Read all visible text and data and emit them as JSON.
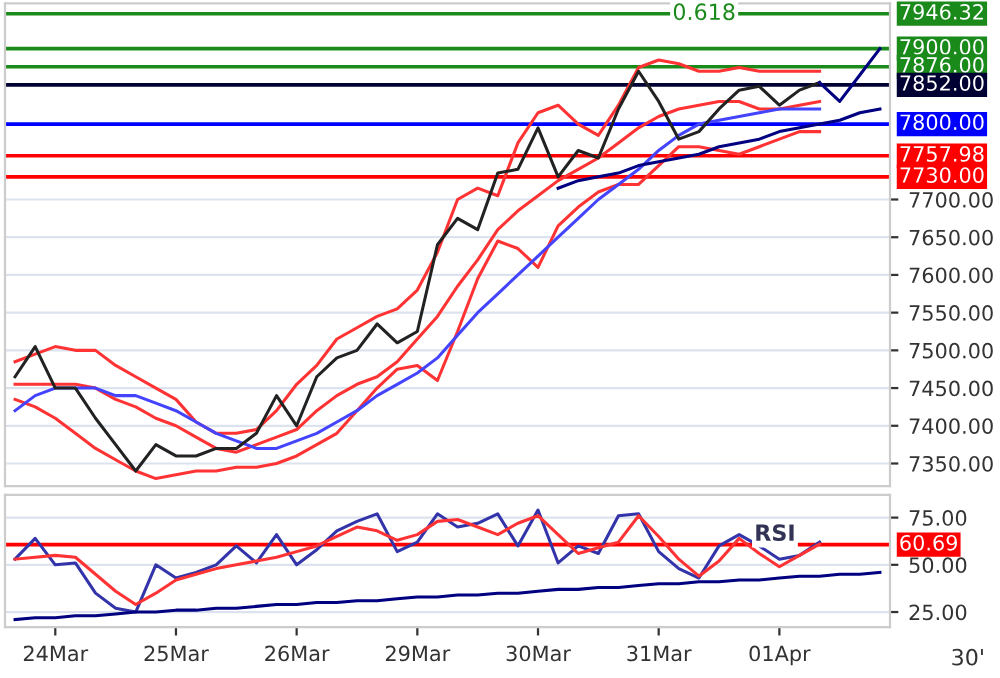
{
  "chart_data": [
    {
      "type": "line",
      "ylim": [
        7320,
        7960
      ],
      "categories": [
        null,
        null,
        null,
        null,
        null,
        null,
        null,
        null,
        null,
        null,
        null,
        null,
        null,
        null,
        null,
        null,
        null,
        null,
        null,
        null,
        null,
        null,
        null,
        null,
        null,
        null,
        null,
        null,
        null,
        null,
        null,
        null,
        null,
        null,
        null,
        null,
        null,
        null,
        null,
        null,
        null,
        null,
        null,
        null
      ],
      "yticks": [
        {
          "value": 7350,
          "label": "7350.00"
        },
        {
          "value": 7400,
          "label": "7400.00"
        },
        {
          "value": 7450,
          "label": "7450.00"
        },
        {
          "value": 7500,
          "label": "7500.00"
        },
        {
          "value": 7550,
          "label": "7550.00"
        },
        {
          "value": 7600,
          "label": "7600.00"
        },
        {
          "value": 7650,
          "label": "7650.00"
        },
        {
          "value": 7700,
          "label": "7700.00"
        }
      ],
      "tick_labels": "y",
      "grid": "y",
      "legend": false,
      "marker": "none",
      "line_style": "solid",
      "series": [
        {
          "color": "#ff3333",
          "values": [
            7485,
            7495,
            7505,
            7500,
            7500,
            7480,
            7465,
            7450,
            7435,
            7405,
            7390,
            7390,
            7395,
            7420,
            7455,
            7480,
            7515,
            7530,
            7545,
            7555,
            7580,
            7630,
            7700,
            7715,
            7705,
            7775,
            7815,
            7825,
            7800,
            7785,
            7825,
            7875,
            7885,
            7880,
            7870,
            7870,
            7875,
            7870,
            7870,
            7870,
            7870,
            null,
            null,
            null
          ]
        },
        {
          "color": "#ff3333",
          "values": [
            7455,
            7455,
            7455,
            7455,
            7450,
            7435,
            7425,
            7410,
            7400,
            7385,
            7370,
            7365,
            7375,
            7385,
            7395,
            7420,
            7440,
            7455,
            7465,
            7485,
            7515,
            7545,
            7585,
            7620,
            7660,
            7685,
            7705,
            7725,
            7740,
            7755,
            7775,
            7795,
            7810,
            7820,
            7825,
            7830,
            7830,
            7820,
            7820,
            7825,
            7830,
            null,
            null,
            null
          ]
        },
        {
          "color": "#ff3333",
          "values": [
            7435,
            7425,
            7410,
            7390,
            7370,
            7355,
            7340,
            7330,
            7335,
            7340,
            7340,
            7345,
            7345,
            7350,
            7360,
            7375,
            7390,
            7420,
            7450,
            7475,
            7480,
            7460,
            7525,
            7595,
            7645,
            7635,
            7610,
            7665,
            7690,
            7710,
            7720,
            7720,
            7745,
            7770,
            7770,
            7765,
            7760,
            7770,
            7780,
            7790,
            7790,
            null,
            null,
            null
          ]
        },
        {
          "color": "#4444ff",
          "values": [
            7420,
            7440,
            7450,
            7450,
            7450,
            7440,
            7440,
            7430,
            7420,
            7405,
            7390,
            7380,
            7370,
            7370,
            7380,
            7390,
            7405,
            7420,
            7440,
            7455,
            7470,
            7490,
            7520,
            7550,
            7575,
            7600,
            7625,
            7650,
            7675,
            7700,
            7720,
            7740,
            7765,
            7785,
            7800,
            7805,
            7810,
            7815,
            7820,
            7820,
            7820,
            null,
            null,
            null
          ]
        },
        {
          "color": "#222222",
          "values": [
            7465,
            7505,
            7450,
            7450,
            7410,
            7375,
            7340,
            7375,
            7360,
            7360,
            7370,
            7370,
            7390,
            7440,
            7400,
            7465,
            7490,
            7500,
            7535,
            7510,
            7525,
            7640,
            7675,
            7660,
            7735,
            7740,
            7795,
            7730,
            7765,
            7755,
            7820,
            7870,
            7830,
            7780,
            7790,
            7820,
            7845,
            7850,
            7825,
            7845,
            7855,
            null,
            null,
            null
          ]
        },
        {
          "color": "#000080",
          "values": [
            null,
            null,
            null,
            null,
            null,
            null,
            null,
            null,
            null,
            null,
            null,
            null,
            null,
            null,
            null,
            null,
            null,
            null,
            null,
            null,
            null,
            null,
            null,
            null,
            null,
            null,
            null,
            7715,
            7725,
            7730,
            7735,
            7745,
            7750,
            7755,
            7760,
            7770,
            7775,
            7780,
            7790,
            7795,
            7800,
            7805,
            7815,
            7820
          ]
        },
        {
          "color": "#000080",
          "values": [
            null,
            null,
            null,
            null,
            null,
            null,
            null,
            null,
            null,
            null,
            null,
            null,
            null,
            null,
            null,
            null,
            null,
            null,
            null,
            null,
            null,
            null,
            null,
            null,
            null,
            null,
            null,
            null,
            null,
            null,
            null,
            null,
            null,
            null,
            null,
            null,
            null,
            null,
            null,
            null,
            7855,
            7830,
            7865,
            7900
          ]
        }
      ],
      "ref_lines": [
        {
          "axis": "y",
          "value": 7946.32,
          "label": "7946.32",
          "color": "#1a8a1a"
        },
        {
          "axis": "y",
          "value": 7900,
          "label": "7900.00",
          "color": "#1a8a1a"
        },
        {
          "axis": "y",
          "value": 7876,
          "label": "7876.00",
          "color": "#1a8a1a"
        },
        {
          "axis": "y",
          "value": 7852,
          "label": "7852.00",
          "color": "#000033"
        },
        {
          "axis": "y",
          "value": 7800,
          "label": "7800.00",
          "color": "#0000ff"
        },
        {
          "axis": "y",
          "value": 7757.98,
          "label": "7757.98",
          "color": "#ff0000"
        },
        {
          "axis": "y",
          "value": 7730,
          "label": "7730.00",
          "color": "#ff0000"
        }
      ],
      "annotations": [
        {
          "text": "0.618",
          "y": 7946.32
        }
      ]
    },
    {
      "type": "line",
      "ylim": [
        17,
        87
      ],
      "categories": [
        null,
        null,
        "24Mar",
        null,
        null,
        null,
        null,
        null,
        "25Mar",
        null,
        null,
        null,
        null,
        null,
        "26Mar",
        null,
        null,
        null,
        null,
        null,
        "29Mar",
        null,
        null,
        null,
        null,
        null,
        "30Mar",
        null,
        null,
        null,
        null,
        null,
        "31Mar",
        null,
        null,
        null,
        null,
        null,
        "01Apr",
        null,
        null,
        null,
        null,
        null
      ],
      "yticks": [
        {
          "value": 25,
          "label": "25.00"
        },
        {
          "value": 50,
          "label": "50.00"
        },
        {
          "value": 75,
          "label": "75.00"
        }
      ],
      "grid": "y",
      "legend": false,
      "marker": "none",
      "line_style": "solid",
      "series": [
        {
          "color": "#3333aa",
          "values": [
            53,
            64,
            50,
            51,
            35,
            27,
            25,
            50,
            43,
            46,
            50,
            60,
            51,
            66,
            50,
            58,
            68,
            73,
            77,
            57,
            62,
            77,
            70,
            72,
            77,
            60,
            79,
            51,
            60,
            56,
            76,
            77,
            57,
            48,
            43,
            60,
            66,
            60,
            53,
            55,
            62,
            null,
            null,
            null
          ]
        },
        {
          "color": "#ff3333",
          "values": [
            53,
            54,
            55,
            54,
            45,
            36,
            29,
            35,
            42,
            45,
            48,
            50,
            52,
            54,
            57,
            60,
            65,
            70,
            68,
            63,
            66,
            73,
            74,
            70,
            66,
            72,
            76,
            66,
            56,
            59,
            62,
            76,
            65,
            53,
            44,
            52,
            64,
            56,
            49,
            55,
            61,
            null,
            null,
            null
          ]
        },
        {
          "color": "#000080",
          "values": [
            21,
            22,
            22,
            23,
            23,
            24,
            25,
            25,
            26,
            26,
            27,
            27,
            28,
            29,
            29,
            30,
            30,
            31,
            31,
            32,
            33,
            33,
            34,
            34,
            35,
            35,
            36,
            37,
            37,
            38,
            38,
            39,
            40,
            40,
            41,
            41,
            42,
            42,
            43,
            44,
            44,
            45,
            45,
            46
          ]
        }
      ],
      "ref_lines": [
        {
          "axis": "y",
          "value": 60.69,
          "label": "60.69",
          "color": "#ff0000"
        }
      ],
      "annotations": [
        {
          "text": "RSI",
          "y": 66
        },
        "30'"
      ]
    }
  ]
}
